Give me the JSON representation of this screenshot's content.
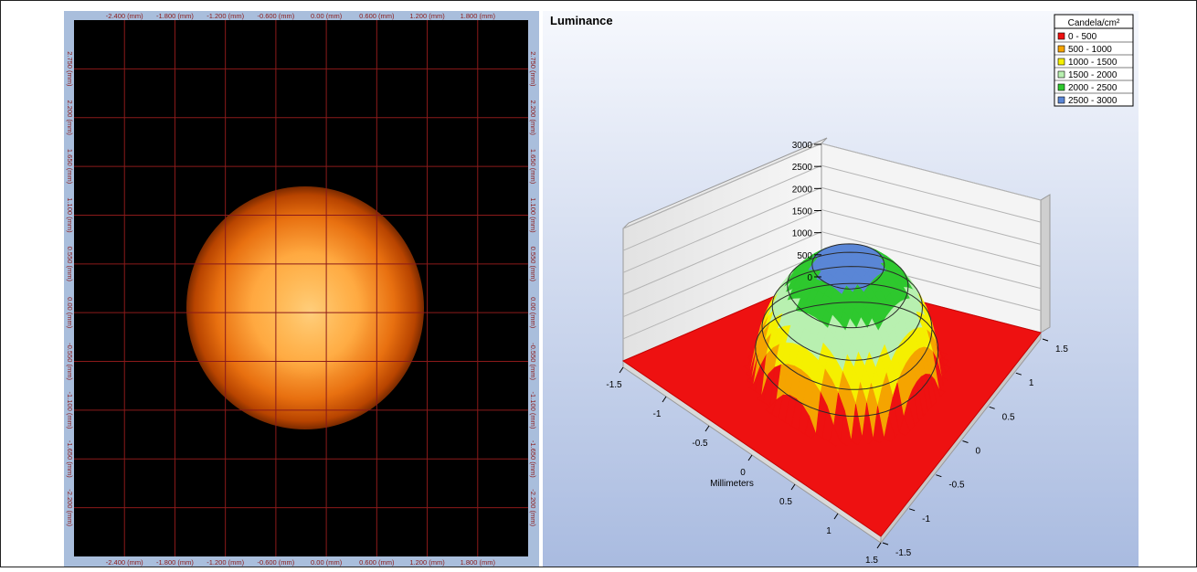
{
  "left_image": {
    "top_ticks": [
      "-2.400 (mm)",
      "-1.800 (mm)",
      "-1.200 (mm)",
      "-0.600 (mm)",
      "0.00 (mm)",
      "0.600 (mm)",
      "1.200 (mm)",
      "1.800 (mm)"
    ],
    "bottom_ticks": [
      "-2.400 (mm)",
      "-1.800 (mm)",
      "-1.200 (mm)",
      "-0.600 (mm)",
      "0.00 (mm)",
      "0.600 (mm)",
      "1.200 (mm)",
      "1.800 (mm)"
    ],
    "side_ticks": [
      "2.750 (mm)",
      "2.200 (mm)",
      "1.650 (mm)",
      "1.100 (mm)",
      "0.550 (mm)",
      "0.00 (mm)",
      "-0.550 (mm)",
      "-1.100 (mm)",
      "-1.650 (mm)",
      "-2.200 (mm)"
    ],
    "colors": {
      "background": "#000000",
      "grid": "#8b1a1a",
      "axis_bar": "#a9bedc",
      "tick_text": "#8b1a1a",
      "spot_core": "#ffb347",
      "spot_edge": "#c84a00"
    }
  },
  "chart_data": {
    "type": "surface3d",
    "title": "Luminance",
    "xlabel": "Millimeters",
    "ylabel": "",
    "zlabel": "",
    "x_ticks": [
      "-1.5",
      "-1",
      "-0.5",
      "0",
      "0.5",
      "1",
      "1.5"
    ],
    "y_ticks": [
      "-1.5",
      "-1",
      "-0.5",
      "0",
      "0.5",
      "1",
      "1.5"
    ],
    "z_ticks": [
      "0",
      "500",
      "1000",
      "1500",
      "2000",
      "2500",
      "3000"
    ],
    "zlim": [
      0,
      3000
    ],
    "xlim": [
      -1.5,
      1.5
    ],
    "ylim": [
      -1.5,
      1.5
    ],
    "peak_luminance": 2750,
    "legend": {
      "title": "Candela/cm²",
      "position": "top-right",
      "entries": [
        {
          "label": "0 - 500",
          "color": "#ee1111"
        },
        {
          "label": "500 - 1000",
          "color": "#f5a400"
        },
        {
          "label": "1000 - 1500",
          "color": "#f5f000"
        },
        {
          "label": "1500 - 2000",
          "color": "#b8f0b0"
        },
        {
          "label": "2000 - 2500",
          "color": "#2ec82e"
        },
        {
          "label": "2500 - 3000",
          "color": "#5a86d6"
        }
      ]
    }
  }
}
